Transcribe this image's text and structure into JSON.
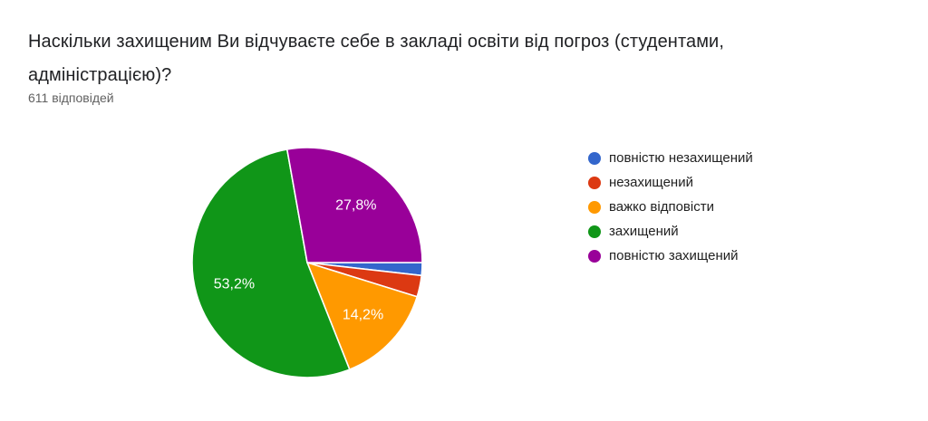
{
  "header": {
    "title_lines": [
      "Наскільки захищеним Ви відчуваєте себе в закладі освіти від погроз (студентами,",
      "адміністрацією)?"
    ],
    "responses_count": "611 відповідей"
  },
  "chart_data": {
    "type": "pie",
    "title": "Наскільки захищеним Ви відчуваєте себе в закладі освіти від погроз (студентами, адміністрацією)?",
    "subtitle": "611 відповідей",
    "total_responses": 611,
    "legend_position": "right",
    "start_angle_deg": 90,
    "direction": "clockwise",
    "label_text_color": "#ffffff",
    "slices": [
      {
        "label": "повністю незахищений",
        "percent": 1.8,
        "display_percent": "",
        "color": "#3366CC"
      },
      {
        "label": "незахищений",
        "percent": 3.0,
        "display_percent": "",
        "color": "#DC3912"
      },
      {
        "label": "важко відповісти",
        "percent": 14.2,
        "display_percent": "14,2%",
        "color": "#FF9900"
      },
      {
        "label": "захищений",
        "percent": 53.2,
        "display_percent": "53,2%",
        "color": "#109618"
      },
      {
        "label": "повністю захищений",
        "percent": 27.8,
        "display_percent": "27,8%",
        "color": "#990099"
      }
    ]
  }
}
